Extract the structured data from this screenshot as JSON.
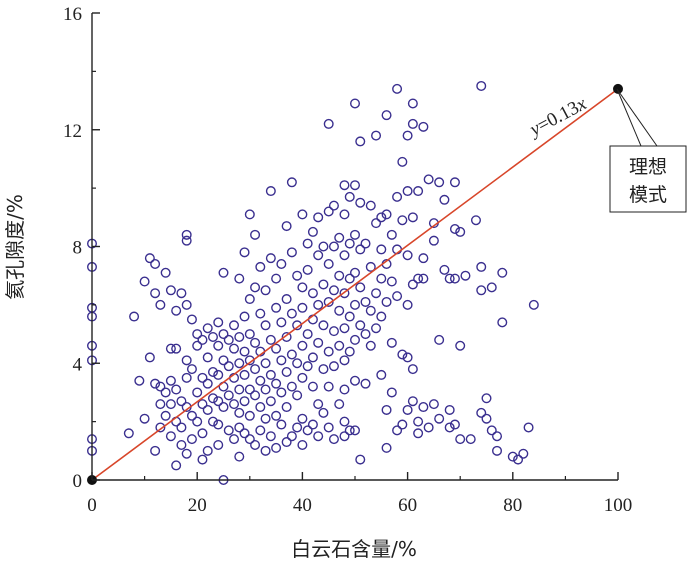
{
  "chart_data": {
    "type": "scatter",
    "title": "",
    "xlabel": "白云石含量/%",
    "ylabel": "氦孔隙度/%",
    "xlim": [
      0,
      100
    ],
    "ylim": [
      0,
      16
    ],
    "xticks": [
      "0",
      "20",
      "40",
      "60",
      "80",
      "100"
    ],
    "yticks": [
      "0",
      "4",
      "8",
      "12",
      "16"
    ],
    "grid": false,
    "colors": {
      "points": "#3a2f8f",
      "line": "#d8462a",
      "endpoints": "#111111"
    },
    "trend_line": {
      "equation_prefix": "y",
      "equation_suffix": "=0.13",
      "equation_var": "x",
      "x": [
        0,
        100
      ],
      "y": [
        0,
        13.4
      ]
    },
    "callout": {
      "line1": "理想",
      "line2": "模式"
    },
    "points": [
      [
        0,
        8.1
      ],
      [
        0,
        7.3
      ],
      [
        0,
        5.9
      ],
      [
        0,
        5.6
      ],
      [
        0,
        4.6
      ],
      [
        0,
        4.1
      ],
      [
        0,
        1.4
      ],
      [
        0,
        1.0
      ],
      [
        7,
        1.6
      ],
      [
        8,
        5.6
      ],
      [
        9,
        3.4
      ],
      [
        10,
        6.8
      ],
      [
        10,
        2.1
      ],
      [
        11,
        7.6
      ],
      [
        11,
        4.2
      ],
      [
        12,
        7.4
      ],
      [
        12,
        6.4
      ],
      [
        12,
        3.3
      ],
      [
        12,
        1.0
      ],
      [
        13,
        6.0
      ],
      [
        13,
        3.2
      ],
      [
        13,
        2.6
      ],
      [
        13,
        1.8
      ],
      [
        14,
        7.1
      ],
      [
        14,
        3.0
      ],
      [
        14,
        2.2
      ],
      [
        15,
        6.5
      ],
      [
        15,
        4.5
      ],
      [
        15,
        3.4
      ],
      [
        15,
        2.6
      ],
      [
        15,
        1.5
      ],
      [
        16,
        5.8
      ],
      [
        16,
        4.5
      ],
      [
        16,
        3.1
      ],
      [
        16,
        2.0
      ],
      [
        16,
        0.5
      ],
      [
        17,
        6.4
      ],
      [
        17,
        2.7
      ],
      [
        17,
        1.8
      ],
      [
        17,
        1.2
      ],
      [
        18,
        8.4
      ],
      [
        18,
        8.2
      ],
      [
        18,
        6.0
      ],
      [
        18,
        4.1
      ],
      [
        18,
        3.5
      ],
      [
        18,
        2.5
      ],
      [
        18,
        0.9
      ],
      [
        19,
        5.5
      ],
      [
        19,
        3.8
      ],
      [
        19,
        2.2
      ],
      [
        19,
        1.4
      ],
      [
        20,
        5.0
      ],
      [
        20,
        4.6
      ],
      [
        20,
        3.0
      ],
      [
        20,
        2.0
      ],
      [
        21,
        4.8
      ],
      [
        21,
        3.5
      ],
      [
        21,
        2.6
      ],
      [
        21,
        1.6
      ],
      [
        21,
        0.7
      ],
      [
        22,
        5.2
      ],
      [
        22,
        4.2
      ],
      [
        22,
        3.3
      ],
      [
        22,
        2.4
      ],
      [
        22,
        1.0
      ],
      [
        23,
        4.9
      ],
      [
        23,
        3.7
      ],
      [
        23,
        2.8
      ],
      [
        23,
        2.0
      ],
      [
        24,
        5.4
      ],
      [
        24,
        4.6
      ],
      [
        24,
        3.6
      ],
      [
        24,
        2.7
      ],
      [
        24,
        1.9
      ],
      [
        24,
        1.2
      ],
      [
        25,
        7.1
      ],
      [
        25,
        5.0
      ],
      [
        25,
        4.1
      ],
      [
        25,
        3.2
      ],
      [
        25,
        2.5
      ],
      [
        25,
        0.0
      ],
      [
        26,
        4.8
      ],
      [
        26,
        3.9
      ],
      [
        26,
        2.9
      ],
      [
        26,
        1.7
      ],
      [
        27,
        5.3
      ],
      [
        27,
        4.5
      ],
      [
        27,
        3.5
      ],
      [
        27,
        2.6
      ],
      [
        27,
        1.4
      ],
      [
        28,
        6.9
      ],
      [
        28,
        4.9
      ],
      [
        28,
        4.0
      ],
      [
        28,
        3.1
      ],
      [
        28,
        2.3
      ],
      [
        28,
        1.8
      ],
      [
        28,
        0.8
      ],
      [
        29,
        7.8
      ],
      [
        29,
        5.6
      ],
      [
        29,
        4.4
      ],
      [
        29,
        3.6
      ],
      [
        29,
        2.7
      ],
      [
        29,
        1.6
      ],
      [
        30,
        9.1
      ],
      [
        30,
        6.2
      ],
      [
        30,
        5.0
      ],
      [
        30,
        4.1
      ],
      [
        30,
        3.1
      ],
      [
        30,
        2.2
      ],
      [
        30,
        1.4
      ],
      [
        31,
        8.4
      ],
      [
        31,
        6.6
      ],
      [
        31,
        4.7
      ],
      [
        31,
        3.8
      ],
      [
        31,
        2.9
      ],
      [
        31,
        1.2
      ],
      [
        32,
        7.3
      ],
      [
        32,
        5.7
      ],
      [
        32,
        4.4
      ],
      [
        32,
        3.4
      ],
      [
        32,
        2.5
      ],
      [
        32,
        1.7
      ],
      [
        33,
        6.5
      ],
      [
        33,
        5.3
      ],
      [
        33,
        4.0
      ],
      [
        33,
        3.1
      ],
      [
        33,
        2.1
      ],
      [
        33,
        1.0
      ],
      [
        34,
        9.9
      ],
      [
        34,
        7.6
      ],
      [
        34,
        4.8
      ],
      [
        34,
        3.6
      ],
      [
        34,
        2.7
      ],
      [
        34,
        1.5
      ],
      [
        35,
        6.9
      ],
      [
        35,
        5.9
      ],
      [
        35,
        4.5
      ],
      [
        35,
        3.3
      ],
      [
        35,
        2.2
      ],
      [
        35,
        1.1
      ],
      [
        36,
        7.4
      ],
      [
        36,
        5.4
      ],
      [
        36,
        4.1
      ],
      [
        36,
        3.0
      ],
      [
        36,
        1.9
      ],
      [
        37,
        8.7
      ],
      [
        37,
        6.2
      ],
      [
        37,
        4.9
      ],
      [
        37,
        3.7
      ],
      [
        37,
        2.5
      ],
      [
        37,
        1.3
      ],
      [
        38,
        10.2
      ],
      [
        38,
        7.8
      ],
      [
        38,
        5.7
      ],
      [
        38,
        4.3
      ],
      [
        38,
        3.2
      ],
      [
        38,
        1.5
      ],
      [
        39,
        7.0
      ],
      [
        39,
        5.3
      ],
      [
        39,
        4.0
      ],
      [
        39,
        2.9
      ],
      [
        39,
        1.8
      ],
      [
        40,
        9.1
      ],
      [
        40,
        6.6
      ],
      [
        40,
        5.9
      ],
      [
        40,
        4.6
      ],
      [
        40,
        3.5
      ],
      [
        40,
        2.1
      ],
      [
        40,
        1.2
      ],
      [
        41,
        8.1
      ],
      [
        41,
        7.2
      ],
      [
        41,
        5.0
      ],
      [
        41,
        3.9
      ],
      [
        41,
        1.7
      ],
      [
        42,
        8.5
      ],
      [
        42,
        6.4
      ],
      [
        42,
        5.5
      ],
      [
        42,
        4.2
      ],
      [
        42,
        3.2
      ],
      [
        42,
        1.9
      ],
      [
        43,
        9.0
      ],
      [
        43,
        7.7
      ],
      [
        43,
        6.0
      ],
      [
        43,
        4.7
      ],
      [
        43,
        2.6
      ],
      [
        43,
        1.5
      ],
      [
        44,
        8.0
      ],
      [
        44,
        6.7
      ],
      [
        44,
        5.3
      ],
      [
        44,
        3.8
      ],
      [
        44,
        2.3
      ],
      [
        45,
        12.2
      ],
      [
        45,
        9.2
      ],
      [
        45,
        7.4
      ],
      [
        45,
        6.1
      ],
      [
        45,
        4.4
      ],
      [
        45,
        3.2
      ],
      [
        45,
        1.8
      ],
      [
        46,
        9.4
      ],
      [
        46,
        8.0
      ],
      [
        46,
        6.5
      ],
      [
        46,
        5.1
      ],
      [
        46,
        3.9
      ],
      [
        46,
        1.4
      ],
      [
        47,
        8.3
      ],
      [
        47,
        7.0
      ],
      [
        47,
        5.8
      ],
      [
        47,
        4.6
      ],
      [
        47,
        2.6
      ],
      [
        48,
        10.1
      ],
      [
        48,
        9.1
      ],
      [
        48,
        7.7
      ],
      [
        48,
        6.4
      ],
      [
        48,
        5.2
      ],
      [
        48,
        4.1
      ],
      [
        48,
        3.1
      ],
      [
        48,
        2.0
      ],
      [
        48,
        1.5
      ],
      [
        49,
        9.7
      ],
      [
        49,
        8.1
      ],
      [
        49,
        6.9
      ],
      [
        49,
        5.6
      ],
      [
        49,
        4.4
      ],
      [
        49,
        1.7
      ],
      [
        50,
        12.9
      ],
      [
        50,
        10.1
      ],
      [
        50,
        8.4
      ],
      [
        50,
        7.1
      ],
      [
        50,
        6.0
      ],
      [
        50,
        4.8
      ],
      [
        50,
        3.4
      ],
      [
        50,
        1.7
      ],
      [
        51,
        11.6
      ],
      [
        51,
        9.5
      ],
      [
        51,
        7.9
      ],
      [
        51,
        6.6
      ],
      [
        51,
        5.3
      ],
      [
        51,
        0.7
      ],
      [
        52,
        8.1
      ],
      [
        52,
        6.1
      ],
      [
        52,
        5.0
      ],
      [
        52,
        3.3
      ],
      [
        53,
        9.4
      ],
      [
        53,
        7.3
      ],
      [
        53,
        5.8
      ],
      [
        53,
        4.6
      ],
      [
        54,
        11.8
      ],
      [
        54,
        8.8
      ],
      [
        54,
        6.4
      ],
      [
        54,
        5.2
      ],
      [
        55,
        9.0
      ],
      [
        55,
        7.9
      ],
      [
        55,
        6.9
      ],
      [
        55,
        5.6
      ],
      [
        55,
        3.6
      ],
      [
        56,
        12.5
      ],
      [
        56,
        9.1
      ],
      [
        56,
        7.4
      ],
      [
        56,
        6.1
      ],
      [
        56,
        2.4
      ],
      [
        56,
        1.1
      ],
      [
        57,
        8.4
      ],
      [
        57,
        6.8
      ],
      [
        57,
        4.7
      ],
      [
        57,
        3.0
      ],
      [
        58,
        13.4
      ],
      [
        58,
        9.7
      ],
      [
        58,
        7.9
      ],
      [
        58,
        6.3
      ],
      [
        58,
        1.7
      ],
      [
        59,
        10.9
      ],
      [
        59,
        8.9
      ],
      [
        59,
        4.3
      ],
      [
        59,
        1.9
      ],
      [
        60,
        11.8
      ],
      [
        60,
        9.9
      ],
      [
        60,
        7.7
      ],
      [
        60,
        6.0
      ],
      [
        60,
        4.2
      ],
      [
        60,
        2.4
      ],
      [
        61,
        12.9
      ],
      [
        61,
        12.2
      ],
      [
        61,
        9.0
      ],
      [
        61,
        6.7
      ],
      [
        61,
        3.8
      ],
      [
        61,
        2.7
      ],
      [
        62,
        9.9
      ],
      [
        62,
        6.9
      ],
      [
        62,
        2.0
      ],
      [
        62,
        1.6
      ],
      [
        63,
        12.1
      ],
      [
        63,
        7.6
      ],
      [
        63,
        6.9
      ],
      [
        63,
        2.5
      ],
      [
        64,
        10.3
      ],
      [
        64,
        1.8
      ],
      [
        65,
        8.8
      ],
      [
        65,
        8.2
      ],
      [
        65,
        2.6
      ],
      [
        66,
        10.2
      ],
      [
        66,
        4.8
      ],
      [
        66,
        2.1
      ],
      [
        67,
        9.6
      ],
      [
        67,
        7.2
      ],
      [
        68,
        6.9
      ],
      [
        68,
        2.4
      ],
      [
        68,
        1.8
      ],
      [
        69,
        10.2
      ],
      [
        69,
        8.6
      ],
      [
        69,
        6.9
      ],
      [
        69,
        1.9
      ],
      [
        70,
        8.5
      ],
      [
        70,
        4.6
      ],
      [
        70,
        1.4
      ],
      [
        71,
        7.0
      ],
      [
        72,
        1.4
      ],
      [
        73,
        8.9
      ],
      [
        74,
        13.5
      ],
      [
        74,
        7.3
      ],
      [
        74,
        6.5
      ],
      [
        74,
        2.3
      ],
      [
        75,
        2.8
      ],
      [
        75,
        2.1
      ],
      [
        76,
        6.6
      ],
      [
        76,
        1.7
      ],
      [
        77,
        1.5
      ],
      [
        77,
        1.0
      ],
      [
        78,
        7.1
      ],
      [
        78,
        5.4
      ],
      [
        80,
        0.8
      ],
      [
        81,
        0.7
      ],
      [
        82,
        0.9
      ],
      [
        83,
        1.8
      ],
      [
        84,
        6.0
      ]
    ]
  }
}
